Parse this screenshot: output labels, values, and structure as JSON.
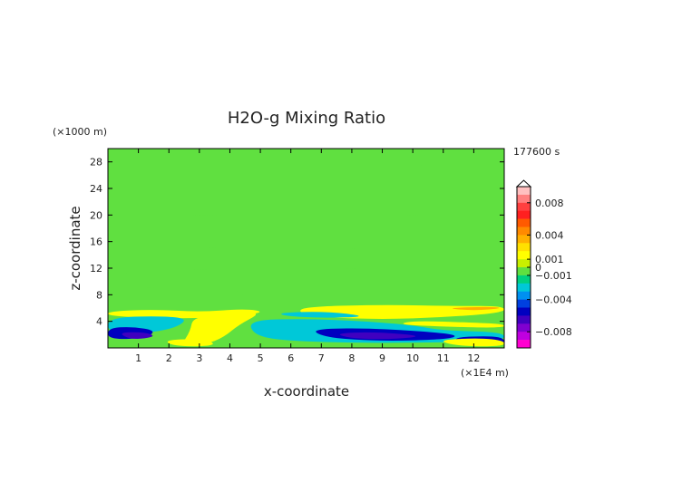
{
  "chart_data": {
    "type": "heatmap",
    "title": "H2O-g Mixing Ratio",
    "xlabel": "x-coordinate",
    "ylabel": "z-coordinate",
    "x_unit": "(×1E4 m)",
    "y_unit": "(×1000 m)",
    "time_label": "177600 s",
    "xlim": [
      0,
      13
    ],
    "ylim": [
      0,
      30
    ],
    "x_ticks": [
      "1",
      "2",
      "3",
      "4",
      "5",
      "6",
      "7",
      "8",
      "9",
      "10",
      "11",
      "12"
    ],
    "y_ticks": [
      "4",
      "8",
      "12",
      "16",
      "20",
      "24",
      "28"
    ],
    "colorbar": {
      "range": [
        -0.01,
        0.01
      ],
      "tick_values": [
        0.008,
        0.004,
        0.001,
        0,
        -0.001,
        -0.004,
        -0.008
      ],
      "tick_labels": [
        "0.008",
        "0.004",
        "0.001",
        "0",
        "−0.001",
        "−0.004",
        "−0.008"
      ],
      "colors_top_to_bottom": [
        "#ffc0c0",
        "#ff8080",
        "#ff4040",
        "#ff2020",
        "#ff5a00",
        "#ff8a00",
        "#ffb000",
        "#ffe000",
        "#ffff00",
        "#c8f000",
        "#60e040",
        "#00d080",
        "#00c8d8",
        "#0090f0",
        "#0040e0",
        "#0000c0",
        "#4000c0",
        "#8000d0",
        "#c000e0",
        "#ff00d0"
      ]
    },
    "field_description": "mostly yellow (~0) with green (slightly negative) bands aloft; orange positive and blue/navy negative anomalies below about 6 km",
    "bands_z": [
      {
        "z": [
          27.0,
          30.0
        ],
        "value": -0.0005,
        "x": [
          7.5,
          10.5
        ]
      },
      {
        "z": [
          24.8,
          26.0
        ],
        "value": -0.0005,
        "x": [
          0.2,
          7.0
        ]
      },
      {
        "z": [
          23.0,
          24.0
        ],
        "value": -0.0005,
        "x": [
          2.0,
          13.0
        ]
      },
      {
        "z": [
          20.2,
          21.0
        ],
        "value": -0.0005,
        "x": [
          0,
          13.0
        ]
      },
      {
        "z": [
          18.0,
          19.8
        ],
        "value": -0.0005,
        "x": [
          0.5,
          13.0
        ]
      },
      {
        "z": [
          15.2,
          16.8
        ],
        "value": -0.0005,
        "x": [
          0.3,
          13.0
        ]
      },
      {
        "z": [
          12.0,
          14.8
        ],
        "value": -0.0005,
        "x": [
          1.0,
          9.5
        ]
      },
      {
        "z": [
          9.0,
          11.6
        ],
        "value": -0.0005,
        "x": [
          0.2,
          12.5
        ]
      },
      {
        "z": [
          6.8,
          8.8
        ],
        "value": -0.0005,
        "x": [
          0,
          4.5
        ]
      }
    ]
  }
}
